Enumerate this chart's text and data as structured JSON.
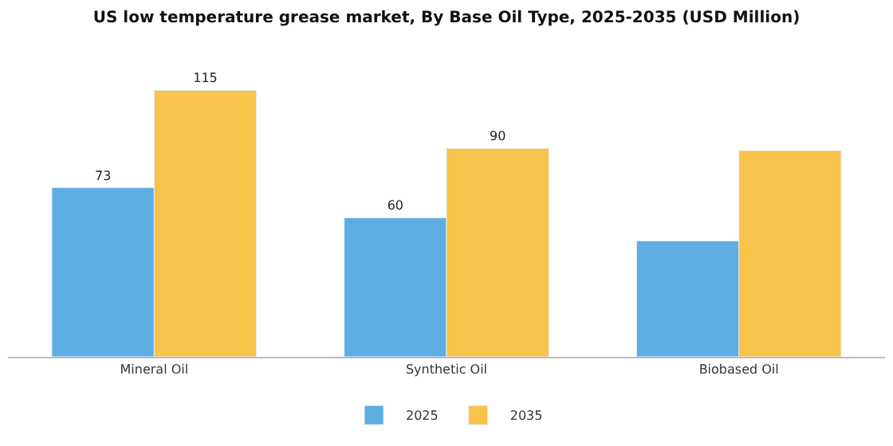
{
  "chart_data": {
    "type": "bar",
    "title": "US low temperature grease market, By Base Oil Type, 2025-2035 (USD Million)",
    "categories": [
      "Mineral Oil",
      "Synthetic Oil",
      "Biobased Oil"
    ],
    "series": [
      {
        "name": "2025",
        "color": "#5dade2",
        "values": [
          73,
          60,
          50
        ],
        "value_labels": [
          "73",
          "60",
          null
        ]
      },
      {
        "name": "2035",
        "color": "#f7c34a",
        "values": [
          115,
          90,
          89
        ],
        "value_labels": [
          "115",
          "90",
          null
        ]
      }
    ],
    "ylim": [
      0,
      115
    ],
    "tick_labels": "x",
    "legend": "bottom"
  }
}
